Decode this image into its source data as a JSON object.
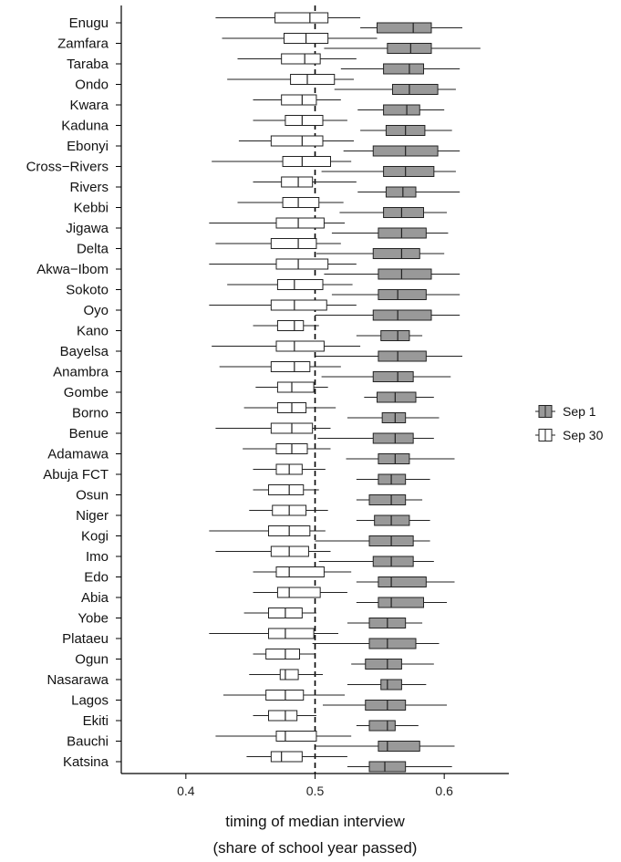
{
  "chart_data": {
    "type": "box",
    "xlabel": [
      "timing of median interview",
      "(share of school year passed)"
    ],
    "xlim": [
      0.35,
      0.65
    ],
    "xticks": [
      0.4,
      0.5,
      0.6
    ],
    "x_tick_labels": [
      "0.4",
      "0.5",
      "0.6"
    ],
    "reference_line_x": 0.5,
    "legend": {
      "position": "right",
      "entries": [
        {
          "name": "Sep 1",
          "fill": "#999999"
        },
        {
          "name": "Sep 30",
          "fill": "#ffffff"
        }
      ]
    },
    "categories": [
      "Enugu",
      "Zamfara",
      "Taraba",
      "Ondo",
      "Kwara",
      "Kaduna",
      "Ebonyi",
      "Cross−Rivers",
      "Rivers",
      "Kebbi",
      "Jigawa",
      "Delta",
      "Akwa−Ibom",
      "Sokoto",
      "Oyo",
      "Kano",
      "Bayelsa",
      "Anambra",
      "Gombe",
      "Borno",
      "Benue",
      "Adamawa",
      "Abuja FCT",
      "Osun",
      "Niger",
      "Kogi",
      "Imo",
      "Edo",
      "Abia",
      "Yobe",
      "Plataeu",
      "Ogun",
      "Nasarawa",
      "Lagos",
      "Ekiti",
      "Bauchi",
      "Katsina"
    ],
    "series": [
      {
        "name": "Sep 30",
        "boxes": [
          [
            0.423,
            0.469,
            0.496,
            0.51,
            0.535
          ],
          [
            0.428,
            0.476,
            0.493,
            0.51,
            0.548
          ],
          [
            0.44,
            0.474,
            0.492,
            0.504,
            0.532
          ],
          [
            0.432,
            0.481,
            0.494,
            0.515,
            0.53
          ],
          [
            0.452,
            0.474,
            0.49,
            0.501,
            0.52
          ],
          [
            0.452,
            0.477,
            0.49,
            0.506,
            0.525
          ],
          [
            0.441,
            0.466,
            0.49,
            0.506,
            0.53
          ],
          [
            0.42,
            0.475,
            0.49,
            0.512,
            0.528
          ],
          [
            0.452,
            0.474,
            0.487,
            0.498,
            0.532
          ],
          [
            0.44,
            0.475,
            0.487,
            0.503,
            0.522
          ],
          [
            0.418,
            0.47,
            0.487,
            0.507,
            0.523
          ],
          [
            0.423,
            0.466,
            0.487,
            0.501,
            0.52
          ],
          [
            0.418,
            0.47,
            0.487,
            0.51,
            0.532
          ],
          [
            0.432,
            0.471,
            0.484,
            0.506,
            0.529
          ],
          [
            0.418,
            0.466,
            0.484,
            0.509,
            0.532
          ],
          [
            0.452,
            0.471,
            0.484,
            0.491,
            0.503
          ],
          [
            0.42,
            0.47,
            0.484,
            0.507,
            0.535
          ],
          [
            0.426,
            0.466,
            0.484,
            0.496,
            0.52
          ],
          [
            0.454,
            0.471,
            0.482,
            0.499,
            0.51
          ],
          [
            0.445,
            0.471,
            0.482,
            0.493,
            0.516
          ],
          [
            0.423,
            0.466,
            0.482,
            0.498,
            0.512
          ],
          [
            0.444,
            0.47,
            0.482,
            0.494,
            0.512
          ],
          [
            0.452,
            0.47,
            0.48,
            0.49,
            0.508
          ],
          [
            0.452,
            0.464,
            0.48,
            0.491,
            0.503
          ],
          [
            0.449,
            0.467,
            0.48,
            0.493,
            0.51
          ],
          [
            0.418,
            0.464,
            0.48,
            0.496,
            0.508
          ],
          [
            0.423,
            0.466,
            0.48,
            0.495,
            0.512
          ],
          [
            0.452,
            0.47,
            0.48,
            0.507,
            0.528
          ],
          [
            0.452,
            0.471,
            0.48,
            0.504,
            0.525
          ],
          [
            0.445,
            0.464,
            0.477,
            0.49,
            0.501
          ],
          [
            0.418,
            0.464,
            0.477,
            0.499,
            0.518
          ],
          [
            0.452,
            0.462,
            0.477,
            0.488,
            0.5
          ],
          [
            0.449,
            0.473,
            0.477,
            0.487,
            0.506
          ],
          [
            0.429,
            0.462,
            0.477,
            0.491,
            0.523
          ],
          [
            0.452,
            0.464,
            0.477,
            0.486,
            0.501
          ],
          [
            0.423,
            0.47,
            0.477,
            0.501,
            0.528
          ],
          [
            0.447,
            0.466,
            0.474,
            0.49,
            0.525
          ]
        ]
      },
      {
        "name": "Sep 1",
        "boxes": [
          [
            0.535,
            0.548,
            0.576,
            0.59,
            0.614
          ],
          [
            0.507,
            0.556,
            0.574,
            0.59,
            0.628
          ],
          [
            0.52,
            0.553,
            0.573,
            0.584,
            0.612
          ],
          [
            0.515,
            0.56,
            0.573,
            0.595,
            0.609
          ],
          [
            0.533,
            0.553,
            0.571,
            0.581,
            0.6
          ],
          [
            0.535,
            0.555,
            0.57,
            0.585,
            0.606
          ],
          [
            0.522,
            0.545,
            0.57,
            0.595,
            0.612
          ],
          [
            0.505,
            0.553,
            0.57,
            0.592,
            0.609
          ],
          [
            0.533,
            0.555,
            0.568,
            0.578,
            0.612
          ],
          [
            0.519,
            0.553,
            0.567,
            0.584,
            0.602
          ],
          [
            0.513,
            0.549,
            0.567,
            0.586,
            0.603
          ],
          [
            0.501,
            0.545,
            0.567,
            0.581,
            0.6
          ],
          [
            0.507,
            0.549,
            0.567,
            0.59,
            0.612
          ],
          [
            0.513,
            0.549,
            0.564,
            0.586,
            0.612
          ],
          [
            0.5,
            0.545,
            0.564,
            0.59,
            0.612
          ],
          [
            0.532,
            0.551,
            0.564,
            0.573,
            0.583
          ],
          [
            0.5,
            0.549,
            0.564,
            0.586,
            0.614
          ],
          [
            0.505,
            0.545,
            0.564,
            0.576,
            0.605
          ],
          [
            0.538,
            0.548,
            0.562,
            0.578,
            0.592
          ],
          [
            0.525,
            0.552,
            0.562,
            0.57,
            0.596
          ],
          [
            0.502,
            0.545,
            0.562,
            0.576,
            0.592
          ],
          [
            0.524,
            0.549,
            0.562,
            0.573,
            0.608
          ],
          [
            0.532,
            0.549,
            0.559,
            0.57,
            0.589
          ],
          [
            0.532,
            0.542,
            0.559,
            0.57,
            0.583
          ],
          [
            0.532,
            0.546,
            0.559,
            0.573,
            0.589
          ],
          [
            0.5,
            0.542,
            0.559,
            0.576,
            0.589
          ],
          [
            0.503,
            0.545,
            0.559,
            0.576,
            0.592
          ],
          [
            0.532,
            0.549,
            0.559,
            0.586,
            0.608
          ],
          [
            0.532,
            0.549,
            0.559,
            0.584,
            0.602
          ],
          [
            0.525,
            0.542,
            0.556,
            0.57,
            0.583
          ],
          [
            0.498,
            0.542,
            0.556,
            0.578,
            0.596
          ],
          [
            0.528,
            0.539,
            0.556,
            0.567,
            0.592
          ],
          [
            0.525,
            0.551,
            0.556,
            0.567,
            0.586
          ],
          [
            0.506,
            0.539,
            0.556,
            0.57,
            0.602
          ],
          [
            0.532,
            0.542,
            0.556,
            0.562,
            0.58
          ],
          [
            0.5,
            0.549,
            0.556,
            0.581,
            0.608
          ],
          [
            0.525,
            0.542,
            0.554,
            0.57,
            0.606
          ]
        ]
      }
    ]
  }
}
